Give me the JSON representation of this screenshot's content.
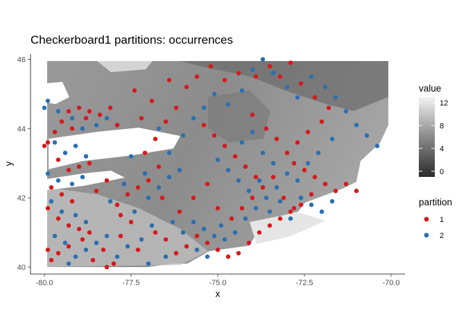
{
  "chart_data": {
    "type": "scatter",
    "title": "Checkerboard1 partitions: occurrences",
    "xlabel": "x",
    "ylabel": "y",
    "xlim": [
      -80.4,
      -69.6
    ],
    "ylim": [
      39.8,
      46.15
    ],
    "x_ticks": [
      -80.0,
      -77.5,
      -75.0,
      -72.5,
      -70.0
    ],
    "x_tick_labels": [
      "-80.0",
      "-77.5",
      "-75.0",
      "-72.5",
      "-70.0"
    ],
    "y_ticks": [
      40,
      42,
      44,
      46
    ],
    "y_tick_labels": [
      "40",
      "42",
      "44",
      "46"
    ],
    "grid": false,
    "background_raster": {
      "description": "grayscale raster of value",
      "colorbar_title": "value",
      "colorbar_range": [
        -1,
        13
      ],
      "colorbar_ticks": [
        0,
        4,
        8,
        12
      ],
      "colorbar_tick_labels": [
        "0",
        "4",
        "8",
        "12"
      ],
      "color_low": "#2b2b2b",
      "color_high": "#f2f2f2"
    },
    "legend": {
      "title": "partition",
      "placement": "right",
      "entries": [
        {
          "label": "1",
          "color": "#d7191c"
        },
        {
          "label": "2",
          "color": "#2c6fb0"
        }
      ]
    },
    "series": [
      {
        "partition": "1",
        "color": "#d7191c",
        "points": [
          [
            -79.9,
            43.6
          ],
          [
            -79.7,
            43.9
          ],
          [
            -79.5,
            44.2
          ],
          [
            -79.3,
            44.5
          ],
          [
            -79.0,
            44.6
          ],
          [
            -78.7,
            44.5
          ],
          [
            -78.4,
            44.4
          ],
          [
            -78.1,
            44.6
          ],
          [
            -79.6,
            43.1
          ],
          [
            -79.3,
            42.8
          ],
          [
            -79.0,
            42.9
          ],
          [
            -78.7,
            43.0
          ],
          [
            -79.8,
            42.3
          ],
          [
            -79.5,
            42.1
          ],
          [
            -79.2,
            41.9
          ],
          [
            -79.9,
            41.7
          ],
          [
            -79.6,
            41.4
          ],
          [
            -79.3,
            41.2
          ],
          [
            -79.0,
            41.1
          ],
          [
            -78.7,
            41.0
          ],
          [
            -79.9,
            40.5
          ],
          [
            -79.6,
            40.4
          ],
          [
            -79.3,
            40.6
          ],
          [
            -78.9,
            40.8
          ],
          [
            -78.6,
            40.2
          ],
          [
            -78.3,
            40.5
          ],
          [
            -78.0,
            40.1
          ],
          [
            -77.8,
            40.9
          ],
          [
            -77.5,
            41.3
          ],
          [
            -77.9,
            41.8
          ],
          [
            -77.6,
            42.1
          ],
          [
            -77.3,
            42.3
          ],
          [
            -77.0,
            42.5
          ],
          [
            -76.7,
            42.9
          ],
          [
            -77.1,
            43.3
          ],
          [
            -76.8,
            43.7
          ],
          [
            -76.5,
            44.2
          ],
          [
            -76.2,
            44.6
          ],
          [
            -76.9,
            44.8
          ],
          [
            -77.4,
            45.1
          ],
          [
            -76.4,
            45.4
          ],
          [
            -75.9,
            45.2
          ],
          [
            -75.6,
            45.5
          ],
          [
            -75.2,
            45.8
          ],
          [
            -74.8,
            45.4
          ],
          [
            -74.4,
            45.6
          ],
          [
            -73.9,
            45.5
          ],
          [
            -73.5,
            45.8
          ],
          [
            -73.2,
            45.5
          ],
          [
            -72.9,
            45.9
          ],
          [
            -72.6,
            45.3
          ],
          [
            -72.2,
            44.9
          ],
          [
            -71.8,
            44.6
          ],
          [
            -72.0,
            44.2
          ],
          [
            -72.4,
            43.9
          ],
          [
            -72.7,
            43.6
          ],
          [
            -73.0,
            43.3
          ],
          [
            -72.8,
            43.0
          ],
          [
            -72.5,
            42.8
          ],
          [
            -72.2,
            42.6
          ],
          [
            -71.9,
            42.4
          ],
          [
            -71.6,
            42.2
          ],
          [
            -71.3,
            42.4
          ],
          [
            -71.0,
            42.2
          ],
          [
            -72.3,
            42.1
          ],
          [
            -72.6,
            41.8
          ],
          [
            -72.9,
            41.6
          ],
          [
            -73.2,
            41.4
          ],
          [
            -73.5,
            41.2
          ],
          [
            -73.8,
            41.0
          ],
          [
            -74.1,
            40.7
          ],
          [
            -74.4,
            40.4
          ],
          [
            -74.7,
            40.3
          ],
          [
            -75.0,
            40.5
          ],
          [
            -75.3,
            40.7
          ],
          [
            -75.6,
            40.9
          ],
          [
            -75.9,
            40.6
          ],
          [
            -76.2,
            40.4
          ],
          [
            -76.5,
            40.8
          ],
          [
            -76.8,
            41.0
          ],
          [
            -74.6,
            41.4
          ],
          [
            -74.3,
            41.7
          ],
          [
            -74.0,
            42.0
          ],
          [
            -73.7,
            42.3
          ],
          [
            -73.4,
            42.6
          ],
          [
            -73.1,
            42.0
          ],
          [
            -72.8,
            41.7
          ],
          [
            -73.9,
            42.6
          ],
          [
            -74.2,
            42.9
          ],
          [
            -74.5,
            43.2
          ],
          [
            -74.8,
            43.5
          ],
          [
            -75.1,
            43.8
          ],
          [
            -75.4,
            44.1
          ],
          [
            -74.0,
            44.4
          ],
          [
            -73.6,
            44.0
          ],
          [
            -73.3,
            43.7
          ],
          [
            -78.2,
            42.5
          ],
          [
            -78.5,
            42.2
          ],
          [
            -77.8,
            41.5
          ],
          [
            -76.1,
            41.6
          ],
          [
            -75.7,
            42.0
          ],
          [
            -75.3,
            42.4
          ],
          [
            -75.0,
            41.7
          ],
          [
            -76.6,
            42.0
          ],
          [
            -79.2,
            44.0
          ],
          [
            -78.8,
            44.3
          ],
          [
            -77.9,
            44.1
          ],
          [
            -77.2,
            44.3
          ],
          [
            -80.0,
            43.5
          ],
          [
            -79.8,
            40.2
          ],
          [
            -78.2,
            40.0
          ],
          [
            -77.3,
            40.5
          ]
        ]
      },
      {
        "partition": "2",
        "color": "#2c6fb0",
        "points": [
          [
            -79.9,
            44.8
          ],
          [
            -79.6,
            44.5
          ],
          [
            -79.2,
            44.3
          ],
          [
            -78.9,
            44.0
          ],
          [
            -78.5,
            44.1
          ],
          [
            -78.2,
            44.3
          ],
          [
            -79.7,
            43.6
          ],
          [
            -79.4,
            43.3
          ],
          [
            -79.1,
            43.5
          ],
          [
            -78.8,
            43.2
          ],
          [
            -79.9,
            42.7
          ],
          [
            -79.6,
            42.5
          ],
          [
            -79.2,
            42.4
          ],
          [
            -78.9,
            42.6
          ],
          [
            -79.8,
            41.9
          ],
          [
            -79.5,
            41.6
          ],
          [
            -79.1,
            41.5
          ],
          [
            -78.8,
            41.3
          ],
          [
            -79.7,
            40.9
          ],
          [
            -79.4,
            40.7
          ],
          [
            -79.1,
            40.3
          ],
          [
            -78.8,
            40.5
          ],
          [
            -78.5,
            40.7
          ],
          [
            -78.2,
            40.9
          ],
          [
            -77.9,
            40.3
          ],
          [
            -77.6,
            40.6
          ],
          [
            -77.2,
            40.8
          ],
          [
            -76.9,
            41.2
          ],
          [
            -77.4,
            41.6
          ],
          [
            -77.7,
            42.4
          ],
          [
            -77.0,
            42.0
          ],
          [
            -76.7,
            42.3
          ],
          [
            -76.4,
            42.6
          ],
          [
            -76.1,
            42.8
          ],
          [
            -76.4,
            43.3
          ],
          [
            -76.0,
            43.8
          ],
          [
            -75.7,
            44.3
          ],
          [
            -75.4,
            44.6
          ],
          [
            -75.1,
            45.0
          ],
          [
            -74.7,
            44.7
          ],
          [
            -74.3,
            45.1
          ],
          [
            -74.0,
            45.7
          ],
          [
            -73.7,
            46.0
          ],
          [
            -73.4,
            45.6
          ],
          [
            -73.0,
            45.2
          ],
          [
            -72.7,
            44.9
          ],
          [
            -72.3,
            45.5
          ],
          [
            -71.9,
            45.2
          ],
          [
            -71.6,
            44.9
          ],
          [
            -71.3,
            44.5
          ],
          [
            -71.0,
            44.1
          ],
          [
            -70.7,
            43.8
          ],
          [
            -70.4,
            43.5
          ],
          [
            -71.7,
            43.7
          ],
          [
            -72.1,
            43.3
          ],
          [
            -72.4,
            43.0
          ],
          [
            -72.7,
            42.5
          ],
          [
            -73.0,
            42.7
          ],
          [
            -73.3,
            42.3
          ],
          [
            -73.6,
            42.0
          ],
          [
            -73.9,
            41.7
          ],
          [
            -74.2,
            41.4
          ],
          [
            -74.5,
            41.0
          ],
          [
            -74.8,
            40.8
          ],
          [
            -75.1,
            40.9
          ],
          [
            -75.4,
            41.1
          ],
          [
            -75.7,
            41.3
          ],
          [
            -76.0,
            41.0
          ],
          [
            -76.3,
            41.3
          ],
          [
            -75.3,
            40.3
          ],
          [
            -75.6,
            40.5
          ],
          [
            -74.9,
            41.2
          ],
          [
            -72.6,
            42.0
          ],
          [
            -72.3,
            41.8
          ],
          [
            -72.0,
            41.6
          ],
          [
            -71.7,
            41.9
          ],
          [
            -72.9,
            41.4
          ],
          [
            -73.2,
            41.9
          ],
          [
            -73.5,
            41.6
          ],
          [
            -73.8,
            42.5
          ],
          [
            -74.1,
            42.2
          ],
          [
            -74.4,
            42.5
          ],
          [
            -74.7,
            42.8
          ],
          [
            -75.0,
            43.1
          ],
          [
            -74.3,
            43.6
          ],
          [
            -74.0,
            43.9
          ],
          [
            -73.7,
            43.3
          ],
          [
            -73.4,
            43.0
          ],
          [
            -77.5,
            43.2
          ],
          [
            -77.1,
            42.7
          ],
          [
            -78.1,
            41.9
          ],
          [
            -76.5,
            40.3
          ],
          [
            -77.0,
            40.1
          ],
          [
            -79.3,
            40.1
          ],
          [
            -80.0,
            44.6
          ],
          [
            -76.7,
            44.0
          ]
        ]
      }
    ]
  }
}
